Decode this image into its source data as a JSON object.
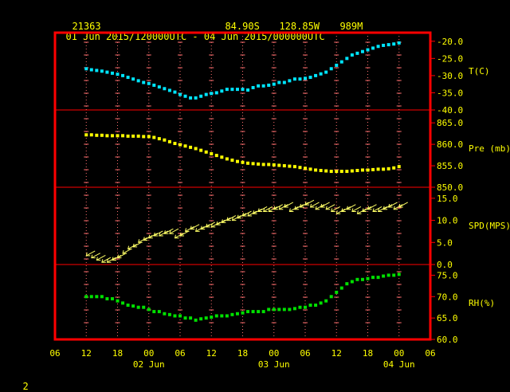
{
  "header": {
    "station": "21363",
    "lat": "84.90S",
    "lon": "128.85W",
    "elev": "989M",
    "period": "01 Jun 2015/120000UTC - 04 Jun 2015/000000UTC"
  },
  "footer": {
    "page_number": "2"
  },
  "colors": {
    "frame": "#ff0000",
    "tick": "#ff6f6f",
    "axis_text": "#ffff00",
    "temp": "#00e5ff",
    "pres": "#ffff00",
    "wind": "#ffff66",
    "rh": "#00e000"
  },
  "chart_data": [
    {
      "type": "scatter",
      "ylabel": "T(C)",
      "ylim": [
        -40,
        -17.5
      ],
      "ytick_labels": [
        "-20.0",
        "-25.0",
        "-30.0",
        "-35.0",
        "-40.0"
      ],
      "yticks": [
        -20,
        -25,
        -30,
        -35,
        -40
      ],
      "x": [
        12,
        13,
        14,
        15,
        16,
        17,
        18,
        19,
        20,
        21,
        22,
        23,
        24,
        25,
        26,
        27,
        28,
        29,
        30,
        31,
        32,
        33,
        34,
        35,
        36,
        37,
        38,
        39,
        40,
        41,
        42,
        43,
        44,
        45,
        46,
        47,
        48,
        49,
        50,
        51,
        52,
        53,
        54,
        55,
        56,
        57,
        58,
        59,
        60,
        61,
        62,
        63,
        64,
        65,
        66,
        67,
        68,
        69,
        70,
        71,
        72
      ],
      "values": [
        -28,
        -28.3,
        -28.5,
        -28.7,
        -29,
        -29.3,
        -29.6,
        -30,
        -30.5,
        -31,
        -31.5,
        -32,
        -32.3,
        -32.8,
        -33.3,
        -33.8,
        -34.3,
        -34.8,
        -35.5,
        -36,
        -36.5,
        -36.5,
        -36,
        -35.5,
        -35.2,
        -35,
        -34.5,
        -34,
        -34,
        -34,
        -34,
        -34.2,
        -33.5,
        -33,
        -33,
        -32.8,
        -32.5,
        -32,
        -32,
        -31.5,
        -31,
        -31,
        -30.8,
        -30.5,
        -30,
        -29.5,
        -29,
        -28,
        -27,
        -26,
        -25,
        -24,
        -23.5,
        -23,
        -22.5,
        -22,
        -21.5,
        -21.2,
        -21,
        -20.8,
        -20.5
      ]
    },
    {
      "type": "scatter",
      "ylabel": "Pre (mb)",
      "ylim": [
        850,
        868
      ],
      "ytick_labels": [
        "865.0",
        "860.0",
        "855.0",
        "850.0"
      ],
      "yticks": [
        865,
        860,
        855,
        850
      ],
      "x": [
        12,
        13,
        14,
        15,
        16,
        17,
        18,
        19,
        20,
        21,
        22,
        23,
        24,
        25,
        26,
        27,
        28,
        29,
        30,
        31,
        32,
        33,
        34,
        35,
        36,
        37,
        38,
        39,
        40,
        41,
        42,
        43,
        44,
        45,
        46,
        47,
        48,
        49,
        50,
        51,
        52,
        53,
        54,
        55,
        56,
        57,
        58,
        59,
        60,
        61,
        62,
        63,
        64,
        65,
        66,
        67,
        68,
        69,
        70,
        71,
        72
      ],
      "values": [
        862.2,
        862.2,
        862.1,
        862.1,
        862,
        862,
        862,
        862,
        861.9,
        861.9,
        861.9,
        861.8,
        861.8,
        861.6,
        861.3,
        861,
        860.6,
        860.2,
        859.9,
        859.6,
        859.3,
        859,
        858.6,
        858.2,
        857.8,
        857.4,
        857,
        856.6,
        856.3,
        856,
        855.8,
        855.6,
        855.5,
        855.4,
        855.3,
        855.3,
        855.2,
        855.1,
        855,
        854.9,
        854.8,
        854.6,
        854.4,
        854.2,
        854,
        853.9,
        853.8,
        853.7,
        853.7,
        853.7,
        853.7,
        853.8,
        853.9,
        854,
        854,
        854.1,
        854.2,
        854.2,
        854.3,
        854.5,
        854.8
      ]
    },
    {
      "type": "scatter",
      "ylabel": "SPD(MPS)",
      "ylim": [
        0,
        17.5
      ],
      "ytick_labels": [
        "15.0",
        "10.0",
        "5.0",
        "0.0"
      ],
      "yticks": [
        15,
        10,
        5,
        0
      ],
      "x": [
        12,
        13,
        14,
        15,
        16,
        17,
        18,
        19,
        20,
        21,
        22,
        23,
        24,
        25,
        26,
        27,
        28,
        29,
        30,
        31,
        32,
        33,
        34,
        35,
        36,
        37,
        38,
        39,
        40,
        41,
        42,
        43,
        44,
        45,
        46,
        47,
        48,
        49,
        50,
        51,
        52,
        53,
        54,
        55,
        56,
        57,
        58,
        59,
        60,
        61,
        62,
        63,
        64,
        65,
        66,
        67,
        68,
        69,
        70,
        71,
        72
      ],
      "values": [
        2.0,
        1.5,
        1.0,
        0.5,
        0.5,
        1.0,
        1.5,
        2.5,
        3.5,
        4.0,
        5.0,
        5.5,
        6.0,
        6.5,
        6.5,
        7.0,
        7.0,
        6.0,
        6.5,
        7.5,
        8.0,
        7.5,
        8.0,
        8.5,
        8.5,
        9.0,
        9.5,
        10.0,
        10.0,
        10.5,
        11.0,
        11.0,
        11.5,
        12.0,
        12.0,
        12.0,
        12.5,
        12.5,
        13.0,
        12.0,
        12.5,
        13.0,
        13.5,
        13.0,
        12.5,
        13.0,
        12.5,
        12.0,
        11.5,
        12.0,
        12.5,
        12.0,
        11.5,
        12.0,
        12.5,
        12.0,
        12.0,
        12.5,
        13.0,
        12.5,
        13.0
      ]
    },
    {
      "type": "scatter",
      "ylabel": "RH(%)",
      "ylim": [
        60,
        77.5
      ],
      "ytick_labels": [
        "75.0",
        "70.0",
        "65.0",
        "60.0"
      ],
      "yticks": [
        75,
        70,
        65,
        60
      ],
      "x": [
        12,
        13,
        14,
        15,
        16,
        17,
        18,
        19,
        20,
        21,
        22,
        23,
        24,
        25,
        26,
        27,
        28,
        29,
        30,
        31,
        32,
        33,
        34,
        35,
        36,
        37,
        38,
        39,
        40,
        41,
        42,
        43,
        44,
        45,
        46,
        47,
        48,
        49,
        50,
        51,
        52,
        53,
        54,
        55,
        56,
        57,
        58,
        59,
        60,
        61,
        62,
        63,
        64,
        65,
        66,
        67,
        68,
        69,
        70,
        71,
        72
      ],
      "values": [
        70,
        70,
        70,
        70,
        69.5,
        69.5,
        69,
        68.5,
        68,
        67.8,
        67.5,
        67.5,
        67,
        66.5,
        66.5,
        66,
        65.8,
        65.5,
        65.5,
        65,
        65,
        64.5,
        64.8,
        65,
        65.2,
        65.5,
        65.5,
        65.5,
        65.8,
        66,
        66.2,
        66.5,
        66.5,
        66.5,
        66.5,
        67,
        67,
        67,
        67,
        67,
        67.2,
        67.5,
        67.5,
        68,
        68,
        68.5,
        69,
        70,
        71,
        72,
        73,
        73.5,
        74,
        74,
        74.2,
        74.5,
        74.5,
        74.8,
        75,
        75,
        75.2
      ]
    }
  ],
  "x_axis": {
    "tick_labels": [
      "06",
      "12",
      "18",
      "00",
      "06",
      "12",
      "18",
      "00",
      "06",
      "12",
      "18",
      "00",
      "06"
    ],
    "tick_hours": [
      6,
      12,
      18,
      24,
      30,
      36,
      42,
      48,
      54,
      60,
      66,
      72,
      78
    ],
    "date_labels": [
      {
        "text": "02 Jun",
        "hour": 24
      },
      {
        "text": "03 Jun",
        "hour": 48
      },
      {
        "text": "04 Jun",
        "hour": 72
      }
    ]
  }
}
